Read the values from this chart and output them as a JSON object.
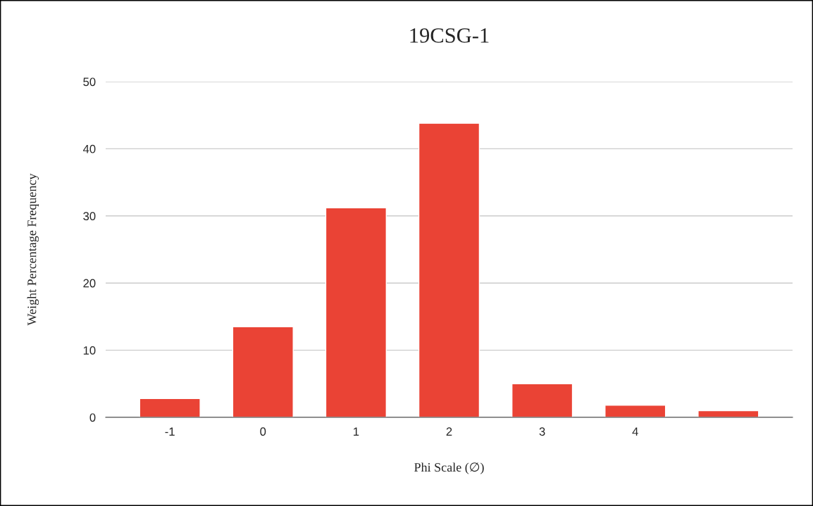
{
  "chart_data": {
    "type": "bar",
    "title": "19CSG-1",
    "xlabel": "Phi Scale (∅)",
    "ylabel": "Weight Percentage Frequency",
    "categories": [
      "-1",
      "0",
      "1",
      "2",
      "3",
      "4",
      null
    ],
    "values": [
      2.8,
      13.5,
      31.2,
      43.8,
      5.0,
      1.8,
      1.0
    ],
    "color": "#ea4335",
    "ylim": [
      0,
      50
    ],
    "yticks": [
      0,
      10,
      20,
      30,
      40,
      50
    ],
    "grid": "y",
    "legend": false
  }
}
